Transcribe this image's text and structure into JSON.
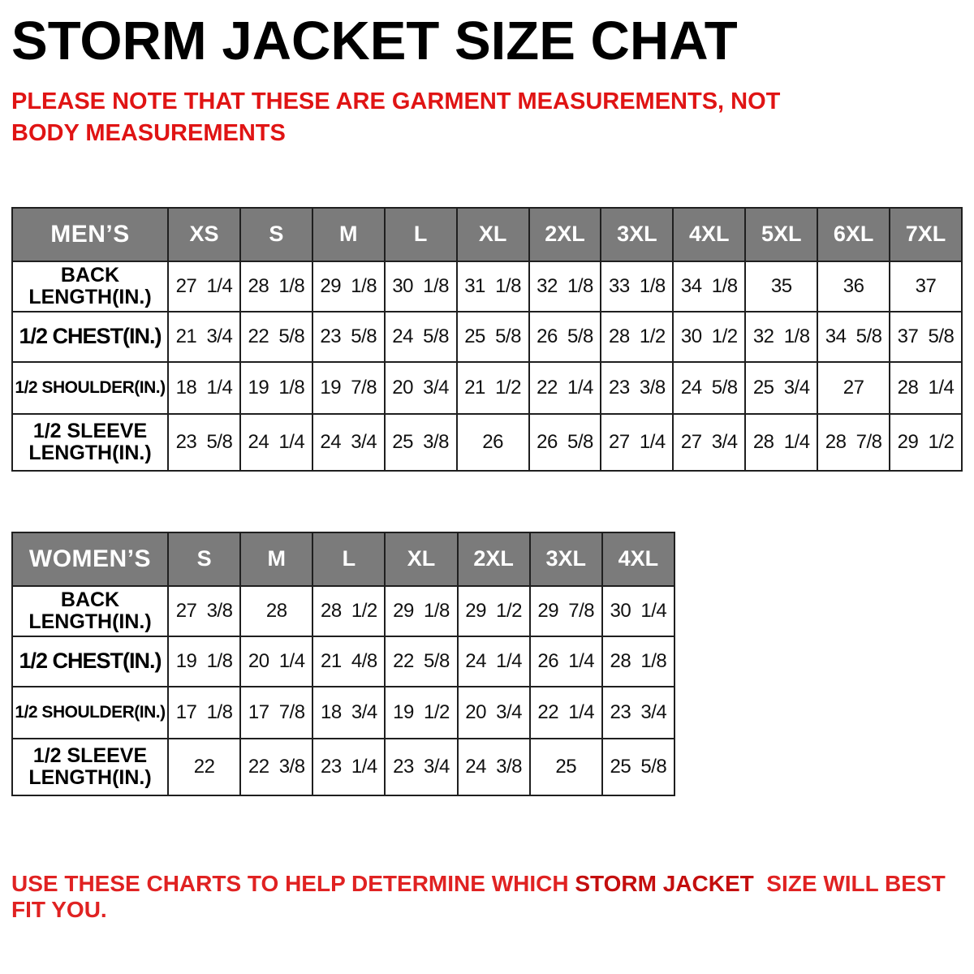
{
  "title": "STORM JACKET SIZE CHAT",
  "note": "PLEASE NOTE THAT THESE ARE GARMENT MEASUREMENTS, NOT BODY MEASUREMENTS",
  "footer": {
    "prefix": "USE THESE CHARTS TO HELP DETERMINE WHICH ",
    "highlight": "STORM JACKET",
    "suffix": "  SIZE WILL BEST FIT YOU."
  },
  "colors": {
    "header_bg": "#7b7b7b",
    "header_text": "#ffffff",
    "note_red": "#e01414",
    "footer_red": "#e02222",
    "footer_dark_red": "#c40e0e",
    "border": "#1f1f1f"
  },
  "mens_table": {
    "header_label": "MEN’S",
    "sizes": [
      "XS",
      "S",
      "M",
      "L",
      "XL",
      "2XL",
      "3XL",
      "4XL",
      "5XL",
      "6XL",
      "7XL"
    ],
    "rows": [
      {
        "label": "BACK LENGTH(IN.)",
        "values": [
          "27 1/4",
          "28 1/8",
          "29 1/8",
          "30 1/8",
          "31 1/8",
          "32 1/8",
          "33 1/8",
          "34 1/8",
          "35",
          "36",
          "37"
        ]
      },
      {
        "label": "1/2 CHEST(IN.)",
        "values": [
          "21 3/4",
          "22 5/8",
          "23 5/8",
          "24 5/8",
          "25 5/8",
          "26 5/8",
          "28 1/2",
          "30 1/2",
          "32 1/8",
          "34 5/8",
          "37 5/8"
        ]
      },
      {
        "label": "1/2 SHOULDER(IN.)",
        "values": [
          "18 1/4",
          "19 1/8",
          "19 7/8",
          "20 3/4",
          "21 1/2",
          "22 1/4",
          "23 3/8",
          "24 5/8",
          "25 3/4",
          "27",
          "28 1/4"
        ]
      },
      {
        "label": "1/2 SLEEVE LENGTH(IN.)",
        "values": [
          "23 5/8",
          "24 1/4",
          "24 3/4",
          "25 3/8",
          "26",
          "26 5/8",
          "27 1/4",
          "27 3/4",
          "28 1/4",
          "28 7/8",
          "29 1/2"
        ]
      }
    ]
  },
  "womens_table": {
    "header_label": "WOMEN’S",
    "sizes": [
      "S",
      "M",
      "L",
      "XL",
      "2XL",
      "3XL",
      "4XL"
    ],
    "rows": [
      {
        "label": "BACK LENGTH(IN.)",
        "values": [
          "27 3/8",
          "28",
          "28 1/2",
          "29 1/8",
          "29 1/2",
          "29 7/8",
          "30 1/4"
        ]
      },
      {
        "label": "1/2 CHEST(IN.)",
        "values": [
          "19 1/8",
          "20 1/4",
          "21 4/8",
          "22 5/8",
          "24 1/4",
          "26 1/4",
          "28 1/8"
        ]
      },
      {
        "label": "1/2 SHOULDER(IN.)",
        "values": [
          "17 1/8",
          "17 7/8",
          "18 3/4",
          "19 1/2",
          "20 3/4",
          "22 1/4",
          "23 3/4"
        ]
      },
      {
        "label": "1/2 SLEEVE LENGTH(IN.)",
        "values": [
          "22",
          "22 3/8",
          "23 1/4",
          "23 3/4",
          "24 3/8",
          "25",
          "25 5/8"
        ]
      }
    ]
  }
}
